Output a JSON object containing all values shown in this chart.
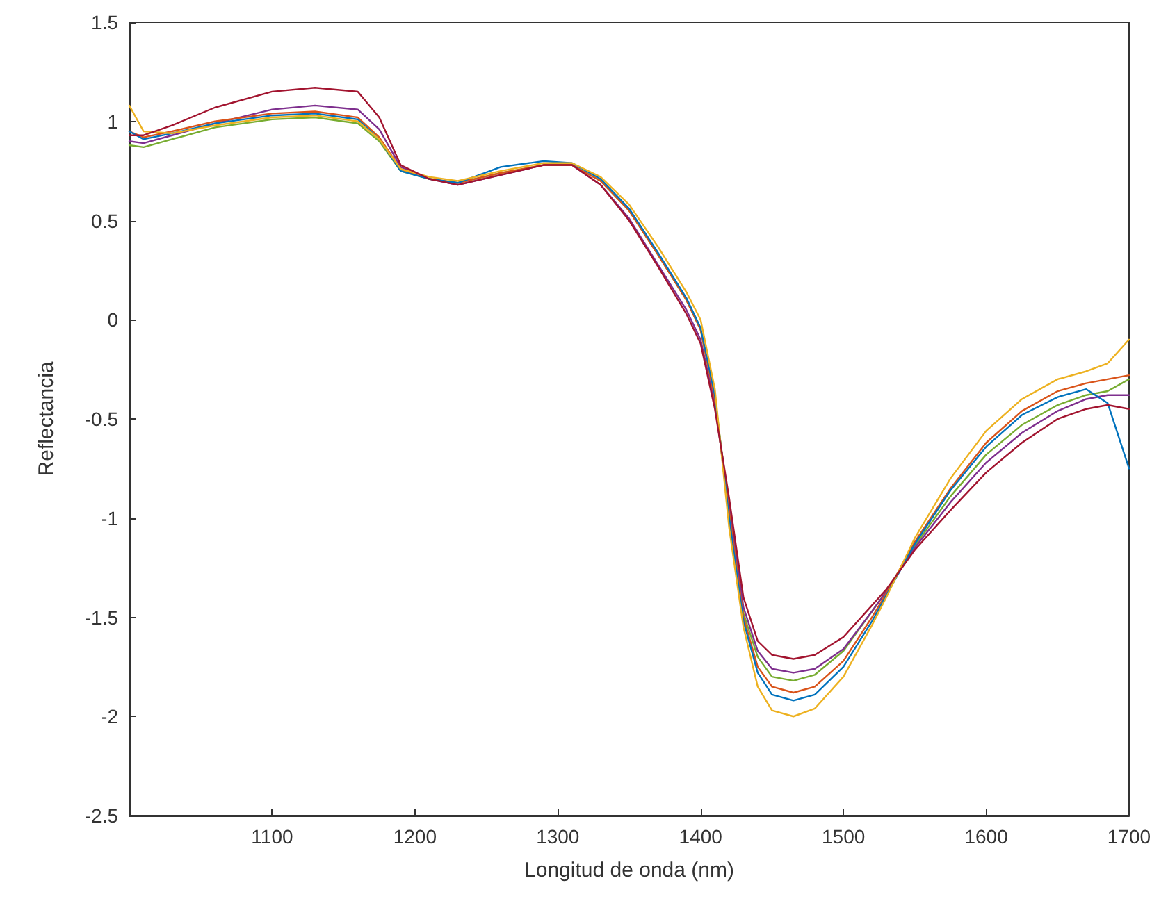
{
  "chart_data": {
    "type": "line",
    "xlabel": "Longitud de onda (nm)",
    "ylabel": "Reflectancia",
    "x": [
      1000,
      1010,
      1030,
      1060,
      1100,
      1130,
      1160,
      1175,
      1190,
      1210,
      1230,
      1260,
      1290,
      1310,
      1330,
      1350,
      1370,
      1390,
      1400,
      1410,
      1420,
      1430,
      1440,
      1450,
      1465,
      1480,
      1500,
      1520,
      1530,
      1550,
      1575,
      1600,
      1625,
      1650,
      1670,
      1685,
      1700
    ],
    "xlim": [
      1000,
      1700
    ],
    "xticks": [
      1100,
      1200,
      1300,
      1400,
      1500,
      1600,
      1700
    ],
    "ylim": [
      -2.5,
      1.5
    ],
    "yticks": [
      -2.5,
      -2,
      -1.5,
      -1,
      -0.5,
      0,
      0.5,
      1,
      1.5
    ],
    "grid": false,
    "marker": "none",
    "line_style": "solid",
    "series": [
      {
        "color": "#77ac30",
        "values": [
          0.88,
          0.87,
          0.91,
          0.97,
          1.01,
          1.02,
          0.99,
          0.9,
          0.75,
          0.71,
          0.69,
          0.74,
          0.78,
          0.78,
          0.7,
          0.55,
          0.33,
          0.1,
          -0.05,
          -0.4,
          -0.95,
          -1.48,
          -1.7,
          -1.8,
          -1.82,
          -1.79,
          -1.67,
          -1.47,
          -1.37,
          -1.14,
          -0.89,
          -0.68,
          -0.53,
          -0.43,
          -0.38,
          -0.36,
          -0.3
        ]
      },
      {
        "color": "#7e2f8e",
        "values": [
          0.9,
          0.89,
          0.93,
          0.99,
          1.06,
          1.08,
          1.06,
          0.96,
          0.77,
          0.71,
          0.68,
          0.73,
          0.78,
          0.78,
          0.68,
          0.51,
          0.28,
          0.05,
          -0.1,
          -0.43,
          -0.93,
          -1.45,
          -1.67,
          -1.76,
          -1.78,
          -1.76,
          -1.66,
          -1.47,
          -1.37,
          -1.15,
          -0.92,
          -0.72,
          -0.57,
          -0.46,
          -0.4,
          -0.38,
          -0.38
        ]
      },
      {
        "color": "#d95319",
        "values": [
          0.95,
          0.92,
          0.95,
          1.0,
          1.04,
          1.05,
          1.02,
          0.92,
          0.76,
          0.71,
          0.69,
          0.74,
          0.78,
          0.78,
          0.7,
          0.55,
          0.33,
          0.1,
          -0.05,
          -0.4,
          -0.97,
          -1.5,
          -1.75,
          -1.85,
          -1.88,
          -1.85,
          -1.72,
          -1.5,
          -1.38,
          -1.12,
          -0.85,
          -0.62,
          -0.46,
          -0.36,
          -0.32,
          -0.3,
          -0.28
        ]
      },
      {
        "color": "#0072bd",
        "values": [
          0.95,
          0.91,
          0.94,
          0.99,
          1.03,
          1.04,
          1.01,
          0.91,
          0.75,
          0.71,
          0.69,
          0.77,
          0.8,
          0.79,
          0.71,
          0.56,
          0.34,
          0.11,
          -0.04,
          -0.38,
          -1.0,
          -1.52,
          -1.78,
          -1.89,
          -1.92,
          -1.89,
          -1.75,
          -1.52,
          -1.39,
          -1.13,
          -0.86,
          -0.64,
          -0.48,
          -0.39,
          -0.35,
          -0.42,
          -0.75
        ]
      },
      {
        "color": "#edb120",
        "values": [
          1.08,
          0.95,
          0.94,
          0.98,
          1.02,
          1.03,
          1.0,
          0.91,
          0.76,
          0.72,
          0.7,
          0.75,
          0.79,
          0.79,
          0.72,
          0.58,
          0.37,
          0.14,
          0.0,
          -0.35,
          -1.05,
          -1.55,
          -1.85,
          -1.97,
          -2.0,
          -1.96,
          -1.8,
          -1.54,
          -1.4,
          -1.1,
          -0.8,
          -0.56,
          -0.4,
          -0.3,
          -0.26,
          -0.22,
          -0.1
        ]
      },
      {
        "color": "#a2142f",
        "values": [
          0.93,
          0.93,
          0.98,
          1.07,
          1.15,
          1.17,
          1.15,
          1.02,
          0.78,
          0.71,
          0.68,
          0.73,
          0.78,
          0.78,
          0.68,
          0.5,
          0.27,
          0.03,
          -0.12,
          -0.45,
          -0.9,
          -1.4,
          -1.62,
          -1.69,
          -1.71,
          -1.69,
          -1.6,
          -1.44,
          -1.36,
          -1.16,
          -0.96,
          -0.77,
          -0.62,
          -0.5,
          -0.45,
          -0.43,
          -0.45
        ]
      }
    ]
  }
}
